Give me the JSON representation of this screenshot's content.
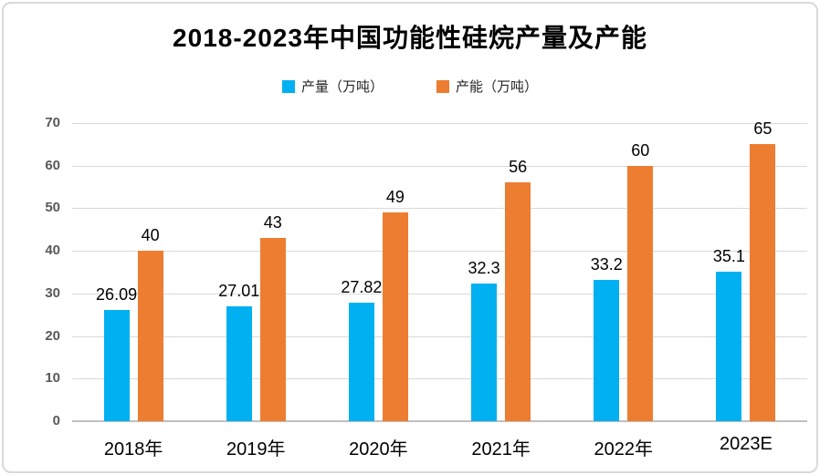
{
  "chart": {
    "title": "2018-2023年中国功能性硅烷产量及产能",
    "colors": {
      "production_blue": "#00B0F0",
      "capacity_orange": "#ED7D31",
      "gridline": "#D9D9D9",
      "axis_text": "#595959"
    }
  },
  "chart_data": {
    "type": "bar",
    "title": "2018-2023年中国功能性硅烷产量及产能",
    "categories": [
      "2018年",
      "2019年",
      "2020年",
      "2021年",
      "2022年",
      "2023E"
    ],
    "series": [
      {
        "name": "产量（万吨）",
        "color": "#00B0F0",
        "values": [
          26.09,
          27.01,
          27.82,
          32.3,
          33.2,
          35.1
        ]
      },
      {
        "name": "产能（万吨）",
        "color": "#ED7D31",
        "values": [
          40,
          43,
          49,
          56,
          60,
          65
        ]
      }
    ],
    "xlabel": "",
    "ylabel": "",
    "ylim": [
      0,
      70
    ],
    "ytick_step": 10,
    "yticks": [
      0,
      10,
      20,
      30,
      40,
      50,
      60,
      70
    ],
    "grid": true,
    "legend_position": "top-center",
    "bar_value_labels": true
  }
}
